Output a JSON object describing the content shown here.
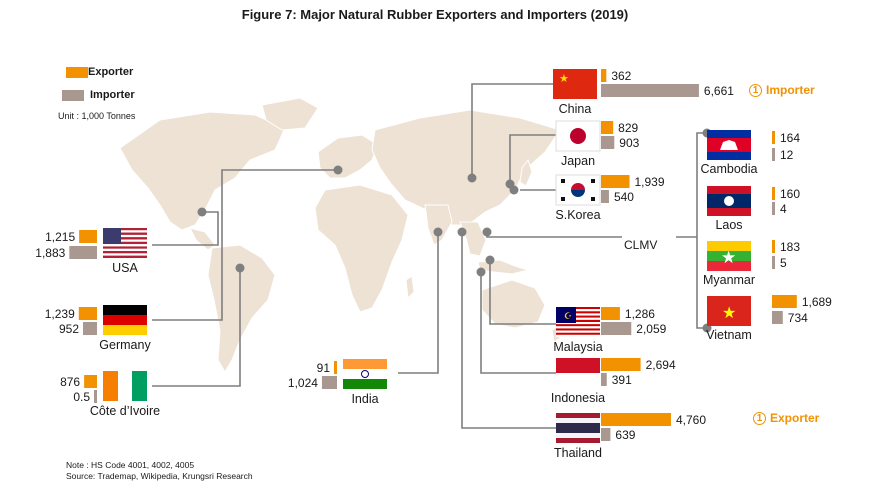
{
  "title": "Figure 7: Major Natural Rubber Exporters and Importers (2019)",
  "legend": {
    "exporter_label": "Exporter",
    "importer_label": "Importer",
    "exporter_color": "#f39200",
    "importer_color": "#a89890"
  },
  "unit": "Unit : 1,000 Tonnes",
  "note_line1": "Note : HS Code 4001, 4002, 4005",
  "note_line2": "Source: Trademap, Wikipedia, Krungsri Research",
  "clmv_label": "CLMV",
  "badges": {
    "importer_rank": "1",
    "importer_text": "Importer",
    "exporter_rank": "1",
    "exporter_text": "Exporter"
  },
  "chart_data": {
    "type": "bar",
    "title": "Figure 7: Major Natural Rubber Exporters and Importers (2019)",
    "unit": "1,000 Tonnes",
    "series": [
      {
        "name": "Exporter",
        "color": "#f39200"
      },
      {
        "name": "Importer",
        "color": "#a89890"
      }
    ],
    "countries": [
      {
        "name": "China",
        "exporter": 362,
        "importer": 6661,
        "exporter_label": "362",
        "importer_label": "6,661",
        "flag": "china-flag"
      },
      {
        "name": "Japan",
        "exporter": 829,
        "importer": 903,
        "exporter_label": "829",
        "importer_label": "903",
        "flag": "japan-flag"
      },
      {
        "name": "S.Korea",
        "exporter": 1939,
        "importer": 540,
        "exporter_label": "1,939",
        "importer_label": "540",
        "flag": "south-korea-flag"
      },
      {
        "name": "USA",
        "exporter": 1215,
        "importer": 1883,
        "exporter_label": "1,215",
        "importer_label": "1,883",
        "flag": "usa-flag"
      },
      {
        "name": "Germany",
        "exporter": 1239,
        "importer": 952,
        "exporter_label": "1,239",
        "importer_label": "952",
        "flag": "germany-flag"
      },
      {
        "name": "Côte d’Ivoire",
        "exporter": 876,
        "importer": 0.5,
        "exporter_label": "876",
        "importer_label": "0.5",
        "flag": "cote-divoire-flag"
      },
      {
        "name": "India",
        "exporter": 91,
        "importer": 1024,
        "exporter_label": "91",
        "importer_label": "1,024",
        "flag": "india-flag"
      },
      {
        "name": "Malaysia",
        "exporter": 1286,
        "importer": 2059,
        "exporter_label": "1,286",
        "importer_label": "2,059",
        "flag": "malaysia-flag"
      },
      {
        "name": "Indonesia",
        "exporter": 2694,
        "importer": 391,
        "exporter_label": "2,694",
        "importer_label": "391",
        "flag": "indonesia-flag"
      },
      {
        "name": "Thailand",
        "exporter": 4760,
        "importer": 639,
        "exporter_label": "4,760",
        "importer_label": "639",
        "flag": "thailand-flag"
      },
      {
        "name": "Cambodia",
        "exporter": 164,
        "importer": 12,
        "exporter_label": "164",
        "importer_label": "12",
        "flag": "cambodia-flag"
      },
      {
        "name": "Laos",
        "exporter": 160,
        "importer": 4,
        "exporter_label": "160",
        "importer_label": "4",
        "flag": "laos-flag"
      },
      {
        "name": "Myanmar",
        "exporter": 183,
        "importer": 5,
        "exporter_label": "183",
        "importer_label": "5",
        "flag": "myanmar-flag"
      },
      {
        "name": "Vietnam",
        "exporter": 1689,
        "importer": 734,
        "exporter_label": "1,689",
        "importer_label": "734",
        "flag": "vietnam-flag"
      }
    ]
  }
}
